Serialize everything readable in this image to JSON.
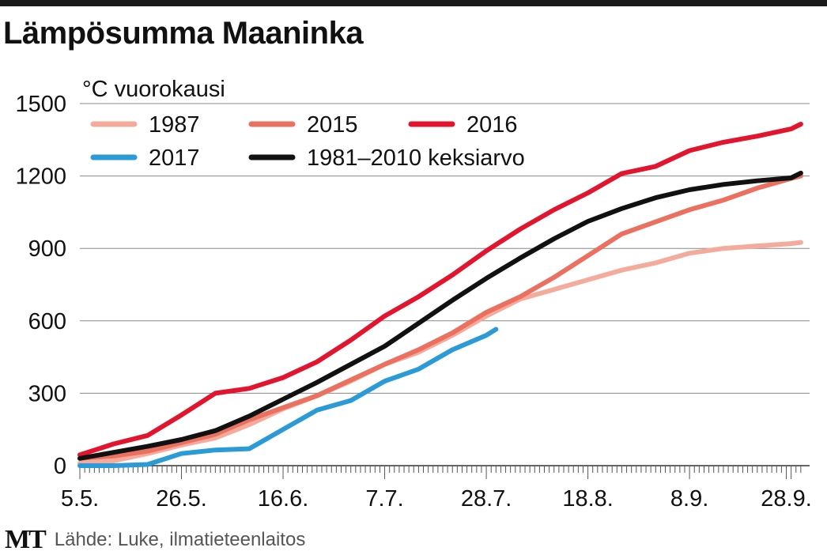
{
  "chart_data": {
    "type": "line",
    "title": "Lämpösumma Maaninka",
    "ylabel": "°C vuorokausi",
    "ylim": [
      0,
      1500
    ],
    "yticks": [
      0,
      300,
      600,
      900,
      1200,
      1500
    ],
    "xticks": [
      "5.5.",
      "26.5.",
      "16.6.",
      "7.7.",
      "28.7.",
      "18.8.",
      "8.9.",
      "28.9."
    ],
    "xrange": [
      "5.5.",
      "1.10."
    ],
    "grid": "horizontal",
    "legend": "top-left",
    "series": [
      {
        "name": "1987",
        "color": "#f4ab9b",
        "x": [
          "5.5.",
          "12.5.",
          "19.5.",
          "26.5.",
          "2.6.",
          "9.6.",
          "16.6.",
          "23.6.",
          "30.6.",
          "7.7.",
          "14.7.",
          "21.7.",
          "28.7.",
          "4.8.",
          "11.8.",
          "18.8.",
          "25.8.",
          "1.9.",
          "8.9.",
          "15.9.",
          "22.9.",
          "29.9.",
          "1.10."
        ],
        "y": [
          10,
          20,
          50,
          85,
          115,
          170,
          235,
          290,
          350,
          420,
          470,
          540,
          620,
          690,
          730,
          770,
          810,
          840,
          880,
          900,
          910,
          920,
          925
        ]
      },
      {
        "name": "2015",
        "color": "#ec705f",
        "x": [
          "5.5.",
          "12.5.",
          "19.5.",
          "26.5.",
          "2.6.",
          "9.6.",
          "16.6.",
          "23.6.",
          "30.6.",
          "7.7.",
          "14.7.",
          "21.7.",
          "28.7.",
          "4.8.",
          "11.8.",
          "18.8.",
          "25.8.",
          "1.9.",
          "8.9.",
          "15.9.",
          "22.9.",
          "29.9.",
          "1.10."
        ],
        "y": [
          30,
          40,
          60,
          95,
          130,
          190,
          240,
          290,
          355,
          420,
          480,
          550,
          635,
          700,
          780,
          870,
          960,
          1010,
          1060,
          1100,
          1150,
          1190,
          1200
        ]
      },
      {
        "name": "2016",
        "color": "#e3142e",
        "x": [
          "5.5.",
          "12.5.",
          "19.5.",
          "26.5.",
          "2.6.",
          "9.6.",
          "16.6.",
          "23.6.",
          "30.6.",
          "7.7.",
          "14.7.",
          "21.7.",
          "28.7.",
          "4.8.",
          "11.8.",
          "18.8.",
          "25.8.",
          "1.9.",
          "8.9.",
          "15.9.",
          "22.9.",
          "29.9.",
          "1.10."
        ],
        "y": [
          45,
          90,
          125,
          210,
          300,
          320,
          365,
          430,
          520,
          620,
          700,
          790,
          890,
          980,
          1060,
          1130,
          1210,
          1240,
          1305,
          1340,
          1365,
          1395,
          1415
        ]
      },
      {
        "name": "2017",
        "color": "#2b9bd7",
        "x": [
          "5.5.",
          "12.5.",
          "19.5.",
          "26.5.",
          "2.6.",
          "9.6.",
          "16.6.",
          "23.6.",
          "30.6.",
          "7.7.",
          "14.7.",
          "21.7.",
          "28.7.",
          "30.7."
        ],
        "y": [
          0,
          0,
          5,
          50,
          65,
          70,
          150,
          230,
          270,
          350,
          400,
          480,
          540,
          565
        ]
      },
      {
        "name": "1981–2010 keksiarvo",
        "color": "#111111",
        "x": [
          "5.5.",
          "12.5.",
          "19.5.",
          "26.5.",
          "2.6.",
          "9.6.",
          "16.6.",
          "23.6.",
          "30.6.",
          "7.7.",
          "14.7.",
          "21.7.",
          "28.7.",
          "4.8.",
          "11.8.",
          "18.8.",
          "25.8.",
          "1.9.",
          "8.9.",
          "15.9.",
          "22.9.",
          "29.9.",
          "1.10."
        ],
        "y": [
          30,
          55,
          80,
          108,
          145,
          205,
          275,
          345,
          420,
          495,
          590,
          685,
          776,
          860,
          940,
          1012,
          1065,
          1110,
          1143,
          1165,
          1180,
          1192,
          1212
        ]
      }
    ]
  },
  "footer": {
    "logo": "MT",
    "source": "Lähde: Luke, ilmatieteenlaitos"
  }
}
